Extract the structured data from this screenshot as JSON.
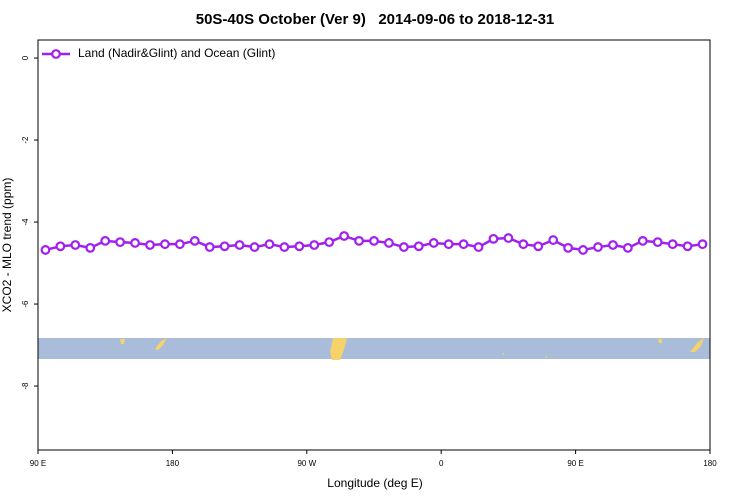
{
  "chart_data": {
    "type": "line",
    "title": "50S-40S October (Ver 9)   2014-09-06 to 2018-12-31",
    "x_label": "Longitude (deg E)",
    "y_label": "XCO2 - MLO trend (ppm)",
    "x": [
      95,
      105,
      115,
      125,
      135,
      145,
      155,
      165,
      175,
      185,
      195,
      205,
      215,
      225,
      235,
      245,
      255,
      265,
      275,
      285,
      295,
      305,
      315,
      325,
      335,
      345,
      355,
      365,
      375,
      385,
      395,
      405,
      415,
      425,
      435,
      445,
      455,
      465,
      475,
      485,
      495,
      505,
      515,
      525,
      535
    ],
    "series": [
      {
        "name": "Land (Nadir&Glint) and Ocean (Glint)",
        "color": "#a020f0",
        "values": [
          -4.68,
          -4.59,
          -4.56,
          -4.63,
          -4.46,
          -4.49,
          -4.51,
          -4.56,
          -4.54,
          -4.54,
          -4.46,
          -4.61,
          -4.59,
          -4.56,
          -4.61,
          -4.54,
          -4.61,
          -4.59,
          -4.56,
          -4.49,
          -4.34,
          -4.46,
          -4.46,
          -4.51,
          -4.61,
          -4.59,
          -4.51,
          -4.54,
          -4.54,
          -4.61,
          -4.41,
          -4.39,
          -4.54,
          -4.59,
          -4.44,
          -4.63,
          -4.68,
          -4.61,
          -4.56,
          -4.63,
          -4.46,
          -4.49,
          -4.54,
          -4.59,
          -4.54
        ]
      }
    ],
    "xlim": [
      90,
      540
    ],
    "xticks": [
      {
        "value": 90,
        "label": "90 E"
      },
      180,
      {
        "value": 270,
        "label": "90 W"
      },
      {
        "value": 360,
        "label": "0"
      },
      {
        "value": 450,
        "label": "90 E"
      },
      {
        "value": 540,
        "label": "180"
      }
    ],
    "ylim": [
      -9.56,
      0.44
    ],
    "yticks": [
      0,
      -2,
      -4,
      -6,
      -8
    ],
    "legend": "top-left"
  }
}
